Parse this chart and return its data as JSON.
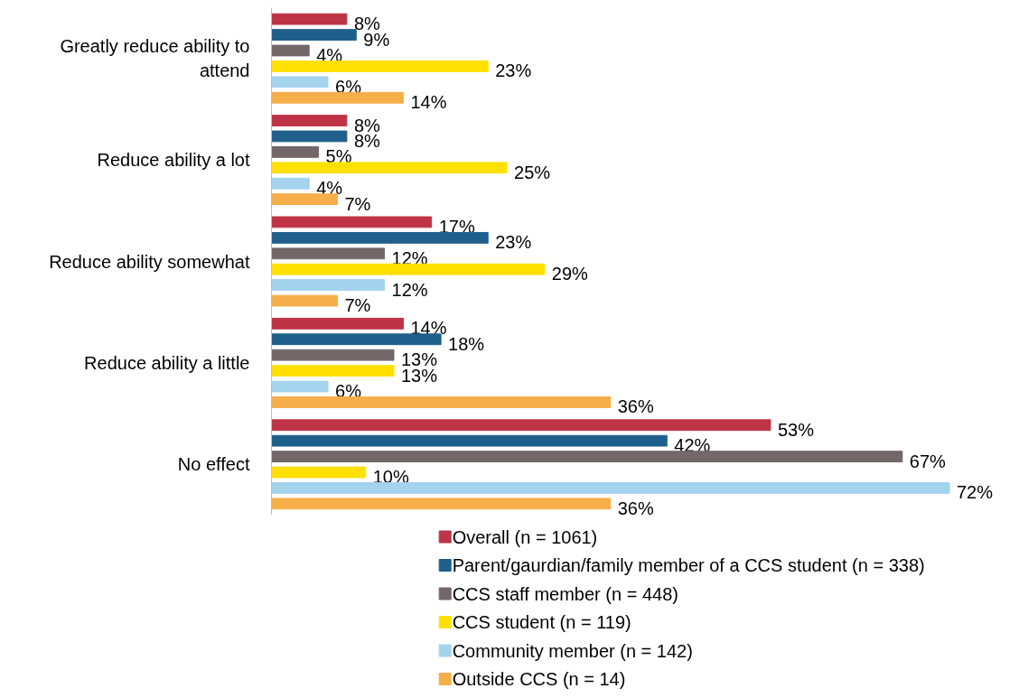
{
  "chart_data": {
    "type": "bar",
    "orientation": "horizontal",
    "legend": "bottom",
    "categories": [
      "Greatly reduce ability to attend",
      "Reduce ability a lot",
      "Reduce ability somewhat",
      "Reduce ability a little",
      "No effect"
    ],
    "series": [
      {
        "name": "Overall (n = 1061)",
        "color": "#be3346",
        "values": [
          8,
          8,
          17,
          14,
          53
        ],
        "value_labels": [
          "8%",
          "8%",
          "17%",
          "14%",
          "53%"
        ]
      },
      {
        "name": "Parent/gaurdian/family member of a CCS student (n = 338)",
        "color": "#1f5f8b",
        "values": [
          9,
          8,
          23,
          18,
          42
        ],
        "value_labels": [
          "9%",
          "8%",
          "23%",
          "18%",
          "42%"
        ]
      },
      {
        "name": "CCS staff member (n = 448)",
        "color": "#74676a",
        "values": [
          4,
          5,
          12,
          13,
          67
        ],
        "value_labels": [
          "4%",
          "5%",
          "12%",
          "13%",
          "67%"
        ]
      },
      {
        "name": "CCS student (n = 119)",
        "color": "#ffe000",
        "values": [
          23,
          25,
          29,
          13,
          10
        ],
        "value_labels": [
          "23%",
          "25%",
          "29%",
          "13%",
          "10%"
        ]
      },
      {
        "name": "Community member (n = 142)",
        "color": "#a4d3ee",
        "values": [
          6,
          4,
          12,
          6,
          72
        ],
        "value_labels": [
          "6%",
          "4%",
          "12%",
          "6%",
          "72%"
        ]
      },
      {
        "name": "Outside CCS (n = 14)",
        "color": "#f5ae4a",
        "values": [
          14,
          7,
          7,
          36,
          36
        ],
        "value_labels": [
          "14%",
          "7%",
          "7%",
          "36%",
          "36%"
        ]
      }
    ]
  }
}
